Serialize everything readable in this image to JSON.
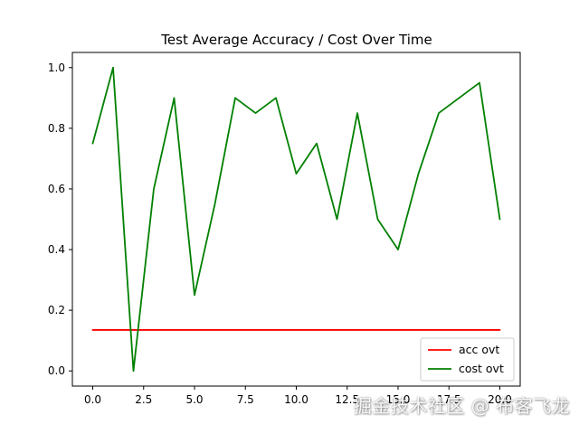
{
  "chart_data": {
    "type": "line",
    "title": "Test Average Accuracy / Cost Over Time",
    "xlabel": "",
    "ylabel": "",
    "xlim": [
      -1,
      21
    ],
    "ylim": [
      -0.05,
      1.05
    ],
    "x_ticks": [
      0,
      2.5,
      5,
      7.5,
      10,
      12.5,
      15,
      17.5,
      20
    ],
    "x_tick_labels": [
      "0.0",
      "2.5",
      "5.0",
      "7.5",
      "10.0",
      "12.5",
      "15.0",
      "17.5",
      "20.0"
    ],
    "y_ticks": [
      0,
      0.2,
      0.4,
      0.6,
      0.8,
      1.0
    ],
    "y_tick_labels": [
      "0.0",
      "0.2",
      "0.4",
      "0.6",
      "0.8",
      "1.0"
    ],
    "grid": false,
    "legend": {
      "position": "bottom-right",
      "entries": [
        "acc ovt",
        "cost ovt"
      ]
    },
    "series": [
      {
        "name": "acc ovt",
        "color": "#ff0000",
        "x": [
          0,
          20
        ],
        "values": [
          0.135,
          0.135
        ]
      },
      {
        "name": "cost ovt",
        "color": "#008000",
        "x": [
          0,
          1,
          2,
          3,
          4,
          5,
          6,
          7,
          8,
          9,
          10,
          11,
          12,
          13,
          14,
          15,
          16,
          17,
          18,
          19,
          20
        ],
        "values": [
          0.75,
          1.0,
          0.0,
          0.6,
          0.9,
          0.25,
          0.55,
          0.9,
          0.85,
          0.9,
          0.65,
          0.75,
          0.5,
          0.85,
          0.5,
          0.4,
          0.65,
          0.85,
          0.9,
          0.95,
          0.5
        ]
      }
    ]
  },
  "watermark": "掘金技术社区 @ 布客飞龙"
}
